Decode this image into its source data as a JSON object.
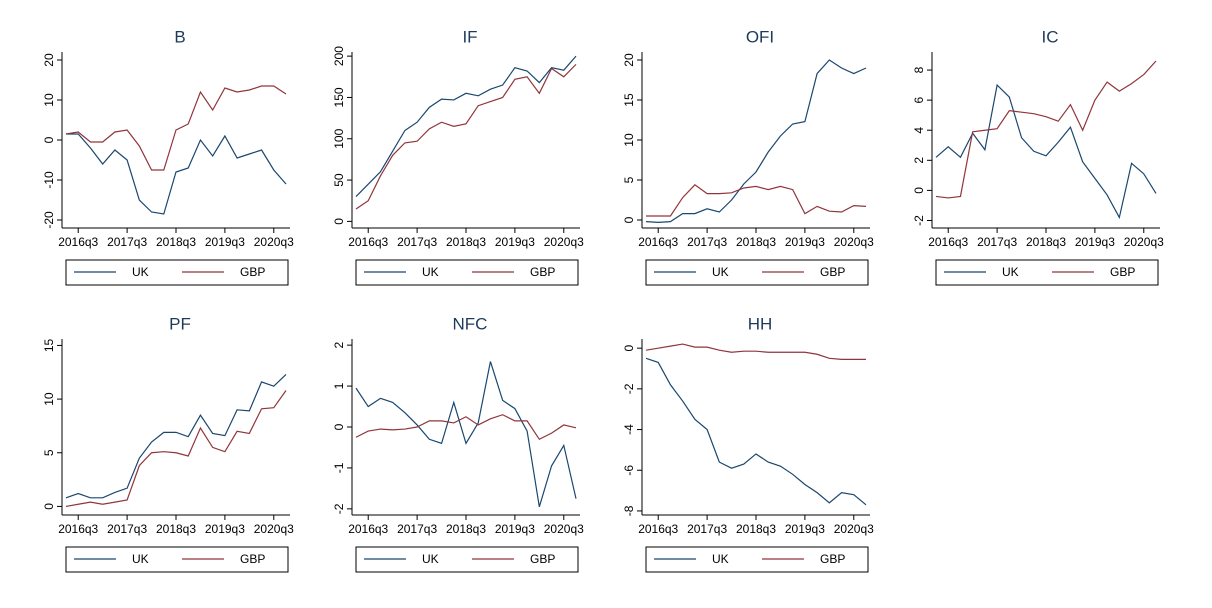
{
  "chart_data": [
    {
      "type": "line",
      "title": "B",
      "x": [
        "2016q2",
        "2016q3",
        "2016q4",
        "2017q1",
        "2017q2",
        "2017q3",
        "2017q4",
        "2018q1",
        "2018q2",
        "2018q3",
        "2018q4",
        "2019q1",
        "2019q2",
        "2019q3",
        "2019q4",
        "2020q1",
        "2020q2",
        "2020q3",
        "2020q4"
      ],
      "xticks": [
        "2016q3",
        "2017q3",
        "2018q3",
        "2019q3",
        "2020q3"
      ],
      "ylim": [
        -22,
        22
      ],
      "yticks": [
        -20,
        -10,
        0,
        10,
        20
      ],
      "series": [
        {
          "name": "UK",
          "color": "#1a476f",
          "values": [
            1.5,
            1.5,
            -2,
            -6,
            -2.5,
            -5,
            -15,
            -18,
            -18.5,
            -8,
            -7,
            0,
            -4,
            1,
            -4.5,
            -3.5,
            -2.5,
            -7.5,
            -11
          ]
        },
        {
          "name": "GBP",
          "color": "#90353b",
          "values": [
            1.5,
            2,
            -0.5,
            -0.5,
            2,
            2.5,
            -1.5,
            -7.5,
            -7.5,
            2.5,
            4,
            12,
            7.5,
            13,
            12,
            12.5,
            13.5,
            13.5,
            11.5
          ]
        }
      ]
    },
    {
      "type": "line",
      "title": "IF",
      "x": [
        "2016q2",
        "2016q3",
        "2016q4",
        "2017q1",
        "2017q2",
        "2017q3",
        "2017q4",
        "2018q1",
        "2018q2",
        "2018q3",
        "2018q4",
        "2019q1",
        "2019q2",
        "2019q3",
        "2019q4",
        "2020q1",
        "2020q2",
        "2020q3",
        "2020q4"
      ],
      "xticks": [
        "2016q3",
        "2017q3",
        "2018q3",
        "2019q3",
        "2020q3"
      ],
      "ylim": [
        -8,
        205
      ],
      "yticks": [
        0,
        50,
        100,
        150,
        200
      ],
      "series": [
        {
          "name": "UK",
          "color": "#1a476f",
          "values": [
            30,
            45,
            60,
            85,
            110,
            120,
            138,
            148,
            147,
            155,
            152,
            160,
            165,
            186,
            182,
            168,
            186,
            183,
            200
          ]
        },
        {
          "name": "GBP",
          "color": "#90353b",
          "values": [
            15,
            25,
            55,
            80,
            95,
            97,
            112,
            120,
            115,
            118,
            140,
            145,
            150,
            172,
            175,
            155,
            185,
            175,
            190
          ]
        }
      ]
    },
    {
      "type": "line",
      "title": "OFI",
      "x": [
        "2016q2",
        "2016q3",
        "2016q4",
        "2017q1",
        "2017q2",
        "2017q3",
        "2017q4",
        "2018q1",
        "2018q2",
        "2018q3",
        "2018q4",
        "2019q1",
        "2019q2",
        "2019q3",
        "2019q4",
        "2020q1",
        "2020q2",
        "2020q3",
        "2020q4"
      ],
      "xticks": [
        "2016q3",
        "2017q3",
        "2018q3",
        "2019q3",
        "2020q3"
      ],
      "ylim": [
        -1,
        21
      ],
      "yticks": [
        0,
        5,
        10,
        15,
        20
      ],
      "series": [
        {
          "name": "UK",
          "color": "#1a476f",
          "values": [
            -0.2,
            -0.3,
            -0.2,
            0.8,
            0.8,
            1.4,
            1,
            2.5,
            4.5,
            6,
            8.5,
            10.5,
            12,
            12.3,
            18.3,
            20,
            19,
            18.3,
            19
          ]
        },
        {
          "name": "GBP",
          "color": "#90353b",
          "values": [
            0.5,
            0.5,
            0.5,
            2.8,
            4.4,
            3.3,
            3.3,
            3.4,
            4,
            4.2,
            3.8,
            4.2,
            3.8,
            0.8,
            1.7,
            1.1,
            1,
            1.8,
            1.7
          ]
        }
      ]
    },
    {
      "type": "line",
      "title": "IC",
      "x": [
        "2016q2",
        "2016q3",
        "2016q4",
        "2017q1",
        "2017q2",
        "2017q3",
        "2017q4",
        "2018q1",
        "2018q2",
        "2018q3",
        "2018q4",
        "2019q1",
        "2019q2",
        "2019q3",
        "2019q4",
        "2020q1",
        "2020q2",
        "2020q3",
        "2020q4"
      ],
      "xticks": [
        "2016q3",
        "2017q3",
        "2018q3",
        "2019q3",
        "2020q3"
      ],
      "ylim": [
        -2.5,
        9.2
      ],
      "yticks": [
        -2,
        0,
        2,
        4,
        6,
        8
      ],
      "series": [
        {
          "name": "UK",
          "color": "#1a476f",
          "values": [
            2.2,
            2.9,
            2.2,
            3.8,
            2.7,
            7,
            6.2,
            3.5,
            2.6,
            2.3,
            3.2,
            4.2,
            1.9,
            0.8,
            -0.3,
            -1.8,
            1.8,
            1.1,
            -0.2
          ]
        },
        {
          "name": "GBP",
          "color": "#90353b",
          "values": [
            -0.4,
            -0.5,
            -0.4,
            3.9,
            4,
            4.1,
            5.3,
            5.2,
            5.1,
            4.9,
            4.6,
            5.7,
            4,
            6,
            7.2,
            6.6,
            7.1,
            7.7,
            8.6
          ]
        }
      ]
    },
    {
      "type": "line",
      "title": "PF",
      "x": [
        "2016q2",
        "2016q3",
        "2016q4",
        "2017q1",
        "2017q2",
        "2017q3",
        "2017q4",
        "2018q1",
        "2018q2",
        "2018q3",
        "2018q4",
        "2019q1",
        "2019q2",
        "2019q3",
        "2019q4",
        "2020q1",
        "2020q2",
        "2020q3",
        "2020q4"
      ],
      "xticks": [
        "2016q3",
        "2017q3",
        "2018q3",
        "2019q3",
        "2020q3"
      ],
      "ylim": [
        -0.8,
        15.6
      ],
      "yticks": [
        0,
        5,
        10,
        15
      ],
      "series": [
        {
          "name": "UK",
          "color": "#1a476f",
          "values": [
            0.8,
            1.2,
            0.8,
            0.8,
            1.3,
            1.7,
            4.5,
            6,
            6.9,
            6.9,
            6.5,
            8.5,
            6.8,
            6.6,
            9,
            8.9,
            11.6,
            11.2,
            12.3
          ]
        },
        {
          "name": "GBP",
          "color": "#90353b",
          "values": [
            0,
            0.2,
            0.4,
            0.2,
            0.4,
            0.6,
            3.8,
            5,
            5.1,
            5,
            4.7,
            7.3,
            5.5,
            5.1,
            7,
            6.8,
            9.1,
            9.2,
            10.8
          ]
        }
      ]
    },
    {
      "type": "line",
      "title": "NFC",
      "x": [
        "2016q2",
        "2016q3",
        "2016q4",
        "2017q1",
        "2017q2",
        "2017q3",
        "2017q4",
        "2018q1",
        "2018q2",
        "2018q3",
        "2018q4",
        "2019q1",
        "2019q2",
        "2019q3",
        "2019q4",
        "2020q1",
        "2020q2",
        "2020q3",
        "2020q4"
      ],
      "xticks": [
        "2016q3",
        "2017q3",
        "2018q3",
        "2019q3",
        "2020q3"
      ],
      "ylim": [
        -2.15,
        2.15
      ],
      "yticks": [
        -2,
        -1,
        0,
        1,
        2
      ],
      "series": [
        {
          "name": "UK",
          "color": "#1a476f",
          "values": [
            0.95,
            0.5,
            0.7,
            0.6,
            0.35,
            0.05,
            -0.3,
            -0.4,
            0.6,
            -0.4,
            0.1,
            1.6,
            0.65,
            0.45,
            -0.1,
            -1.95,
            -0.95,
            -0.45,
            -1.75
          ]
        },
        {
          "name": "GBP",
          "color": "#90353b",
          "values": [
            -0.25,
            -0.1,
            -0.05,
            -0.07,
            -0.05,
            0,
            0.15,
            0.15,
            0.1,
            0.25,
            0.05,
            0.2,
            0.3,
            0.15,
            0.15,
            -0.3,
            -0.15,
            0.05,
            -0.02
          ]
        }
      ]
    },
    {
      "type": "line",
      "title": "HH",
      "x": [
        "2016q2",
        "2016q3",
        "2016q4",
        "2017q1",
        "2017q2",
        "2017q3",
        "2017q4",
        "2018q1",
        "2018q2",
        "2018q3",
        "2018q4",
        "2019q1",
        "2019q2",
        "2019q3",
        "2019q4",
        "2020q1",
        "2020q2",
        "2020q3",
        "2020q4"
      ],
      "xticks": [
        "2016q3",
        "2017q3",
        "2018q3",
        "2019q3",
        "2020q3"
      ],
      "ylim": [
        -8.2,
        0.45
      ],
      "yticks": [
        -8,
        -6,
        -4,
        -2,
        0
      ],
      "series": [
        {
          "name": "UK",
          "color": "#1a476f",
          "values": [
            -0.5,
            -0.7,
            -1.8,
            -2.6,
            -3.5,
            -4,
            -5.6,
            -5.9,
            -5.7,
            -5.2,
            -5.6,
            -5.8,
            -6.2,
            -6.7,
            -7.1,
            -7.6,
            -7.1,
            -7.2,
            -7.7
          ]
        },
        {
          "name": "GBP",
          "color": "#90353b",
          "values": [
            -0.1,
            0,
            0.1,
            0.2,
            0.05,
            0.05,
            -0.1,
            -0.2,
            -0.15,
            -0.15,
            -0.2,
            -0.2,
            -0.2,
            -0.2,
            -0.3,
            -0.5,
            -0.55,
            -0.55,
            -0.55
          ]
        }
      ]
    }
  ]
}
